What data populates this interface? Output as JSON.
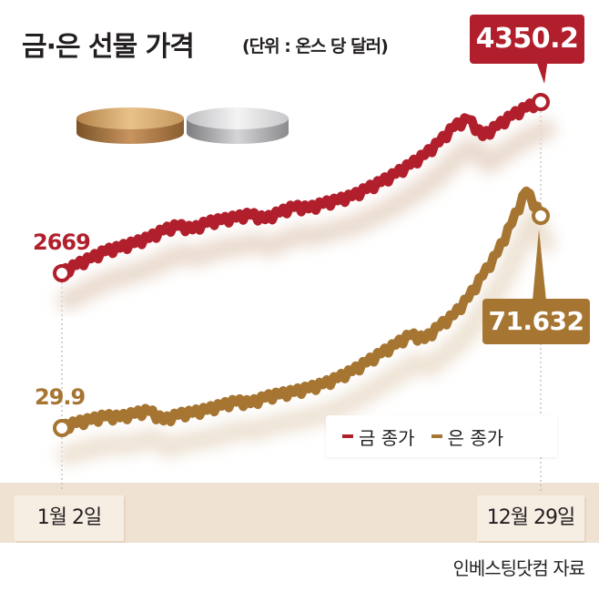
{
  "header": {
    "title": "금·은 선물 가격",
    "unit": "(단위 : 온스 당 달러)"
  },
  "colors": {
    "gold": "#b11f2c",
    "silver": "#a67532"
  },
  "labels": {
    "gold_start": "2669",
    "gold_end": "4350.2",
    "silver_start": "29.9",
    "silver_end": "71.632"
  },
  "legend": {
    "gold": "금 종가",
    "silver": "은 종가"
  },
  "axis": {
    "start": "1월 2일",
    "end": "12월 29일"
  },
  "footer": {
    "source": "인베스팅닷컴 자료"
  },
  "icons": [
    "gold-coin-icon",
    "silver-coin-icon"
  ],
  "chart_data": {
    "type": "line",
    "title": "금·은 선물 가격",
    "unit": "(단위 : 온스 당 달러)",
    "x_range": [
      "1월 2일",
      "12월 29일"
    ],
    "grid": false,
    "legend_position": "bottom-right",
    "series": [
      {
        "name": "금 종가",
        "start": 2669,
        "end": 4350.2,
        "values": [
          2669,
          2745,
          2810,
          2880,
          2915,
          2960,
          3010,
          3085,
          3130,
          3095,
          3160,
          3185,
          3210,
          3240,
          3195,
          3260,
          3315,
          3300,
          3345,
          3380,
          3420,
          3490,
          3560,
          3640,
          3730,
          3825,
          3950,
          4100,
          4180,
          4010,
          4110,
          4210,
          4290,
          4350.2
        ]
      },
      {
        "name": "은 종가",
        "start": 29.9,
        "end": 71.632,
        "values": [
          29.9,
          30.8,
          31.4,
          32.1,
          31.9,
          32.6,
          33.2,
          31.3,
          32.4,
          32.8,
          33.4,
          34.2,
          35.0,
          34.7,
          35.8,
          36.4,
          36.9,
          37.6,
          38.4,
          39.6,
          41.0,
          42.7,
          44.5,
          46.2,
          48.1,
          47.3,
          49.8,
          52.0,
          55.4,
          59.8,
          64.2,
          70.1,
          76.5,
          71.632
        ]
      }
    ]
  }
}
